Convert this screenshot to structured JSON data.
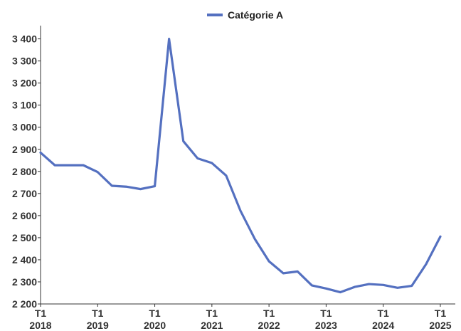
{
  "chart_data": {
    "type": "line",
    "title": "",
    "xlabel": "",
    "ylabel": "",
    "ylim": [
      2200,
      3460
    ],
    "yticks": [
      2200,
      2300,
      2400,
      2500,
      2600,
      2700,
      2800,
      2900,
      3000,
      3100,
      3200,
      3300,
      3400
    ],
    "ytick_labels": [
      "2 200",
      "2 300",
      "2 400",
      "2 500",
      "2 600",
      "2 700",
      "2 800",
      "2 900",
      "3 000",
      "3 100",
      "3 200",
      "3 300",
      "3 400"
    ],
    "xticks": [
      {
        "quarter": "T1",
        "year": "2018"
      },
      {
        "quarter": "T1",
        "year": "2019"
      },
      {
        "quarter": "T1",
        "year": "2020"
      },
      {
        "quarter": "T1",
        "year": "2021"
      },
      {
        "quarter": "T1",
        "year": "2022"
      },
      {
        "quarter": "T1",
        "year": "2023"
      },
      {
        "quarter": "T1",
        "year": "2024"
      },
      {
        "quarter": "T1",
        "year": "2025"
      }
    ],
    "x": [
      "2018-T1",
      "2018-T2",
      "2018-T3",
      "2018-T4",
      "2019-T1",
      "2019-T2",
      "2019-T3",
      "2019-T4",
      "2020-T1",
      "2020-T2",
      "2020-T3",
      "2020-T4",
      "2021-T1",
      "2021-T2",
      "2021-T3",
      "2021-T4",
      "2022-T1",
      "2022-T2",
      "2022-T3",
      "2022-T4",
      "2023-T1",
      "2023-T2",
      "2023-T3",
      "2023-T4",
      "2024-T1",
      "2024-T2",
      "2024-T3",
      "2024-T4",
      "2025-T1"
    ],
    "series": [
      {
        "name": "Catégorie A",
        "color": "#5470C0",
        "values": [
          2885,
          2828,
          2828,
          2828,
          2797,
          2735,
          2731,
          2720,
          2733,
          3400,
          2937,
          2859,
          2838,
          2781,
          2622,
          2495,
          2393,
          2339,
          2347,
          2284,
          2270,
          2253,
          2277,
          2290,
          2286,
          2273,
          2282,
          2380,
          2505
        ]
      }
    ],
    "legend_position": "top-center",
    "grid": false
  }
}
